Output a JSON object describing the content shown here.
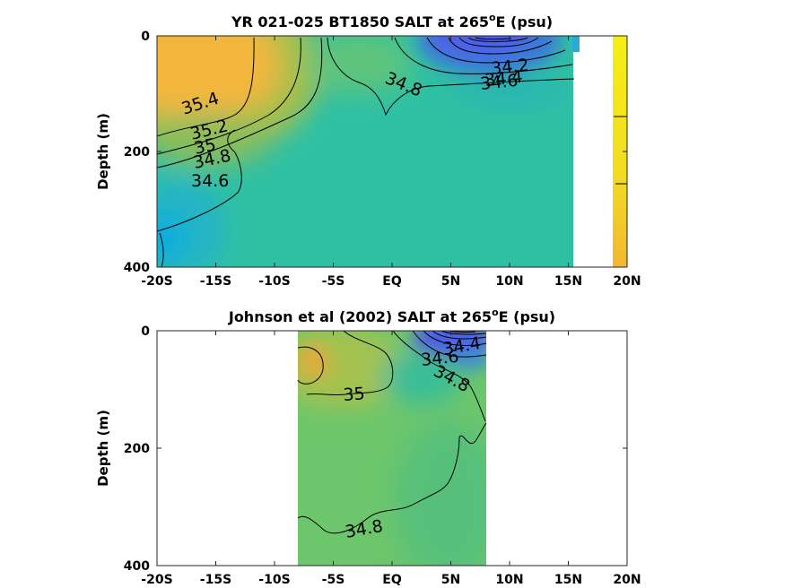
{
  "chart_data": [
    {
      "type": "heatmap",
      "title_main": "YR 021-025 BT1850 SALT at 265",
      "title_sup": "o",
      "title_end": "E (psu)",
      "ylabel": "Depth (m)",
      "x_ticks": [
        -20,
        -15,
        -10,
        -5,
        0,
        5,
        10,
        15,
        20
      ],
      "x_tick_labels": [
        "-20S",
        "-15S",
        "-10S",
        "-5S",
        "EQ",
        "5N",
        "10N",
        "15N",
        "20N"
      ],
      "y_ticks": [
        0,
        200,
        400
      ],
      "y_tick_labels": [
        "0",
        "200",
        "400"
      ],
      "xlim": [
        -20,
        20
      ],
      "ylim": [
        0,
        400
      ],
      "data_extent": {
        "lat_min": -20,
        "lat_max": 15.3
      },
      "contour_labels": [
        "35.4",
        "35.2",
        "35",
        "34.8",
        "34.6",
        "34.8",
        "34.2",
        "34.4",
        "34.6"
      ]
    },
    {
      "type": "heatmap",
      "title_main": "Johnson et al (2002) SALT at 265",
      "title_sup": "o",
      "title_end": "E (psu)",
      "ylabel": "Depth (m)",
      "x_ticks": [
        -20,
        -15,
        -10,
        -5,
        0,
        5,
        10,
        15,
        20
      ],
      "x_tick_labels": [
        "-20S",
        "-15S",
        "-10S",
        "-5S",
        "EQ",
        "5N",
        "10N",
        "15N",
        "20N"
      ],
      "y_ticks": [
        0,
        200,
        400
      ],
      "y_tick_labels": [
        "0",
        "200",
        "400"
      ],
      "xlim": [
        -20,
        20
      ],
      "ylim": [
        0,
        400
      ],
      "data_extent": {
        "lat_min": -8,
        "lat_max": 8
      },
      "contour_labels": [
        "35",
        "34.8",
        "34.4",
        "34.6",
        "34.8"
      ]
    }
  ]
}
